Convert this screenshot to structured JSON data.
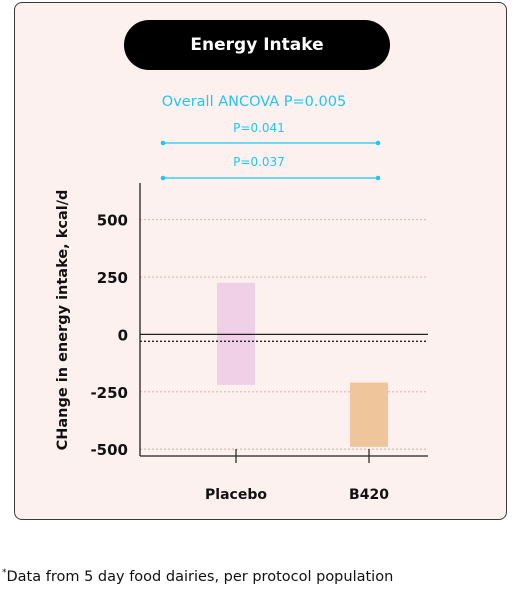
{
  "chart_data": {
    "type": "bar",
    "title": "Energy Intake",
    "ylabel": "CHange in energy intake, kcal/d",
    "xlabel": "",
    "categories": [
      "Placebo",
      "B420"
    ],
    "ranges": [
      {
        "category": "Placebo",
        "low": -220,
        "high": 225,
        "color": "#efd0e6"
      },
      {
        "category": "B420",
        "low": -490,
        "high": -210,
        "color": "#efc69b"
      }
    ],
    "ylim": [
      -530,
      660
    ],
    "yticks": [
      500,
      250,
      0,
      -250,
      -500
    ],
    "ytick_labels": [
      "500",
      "250",
      "0",
      "-250",
      "-500"
    ],
    "reference_lines": [
      {
        "y": 0,
        "style": "solid"
      },
      {
        "y": -30,
        "style": "dotted"
      }
    ],
    "annotations": {
      "overall": "Overall ANCOVA P=0.005",
      "comparisons": [
        "P=0.041",
        "P=0.037"
      ]
    },
    "grid": "dotted at 500, 250, -250",
    "accent_color": "#1ec8f0"
  },
  "footnote": {
    "mark": "*",
    "text": "Data from 5 day food dairies, per protocol population"
  }
}
